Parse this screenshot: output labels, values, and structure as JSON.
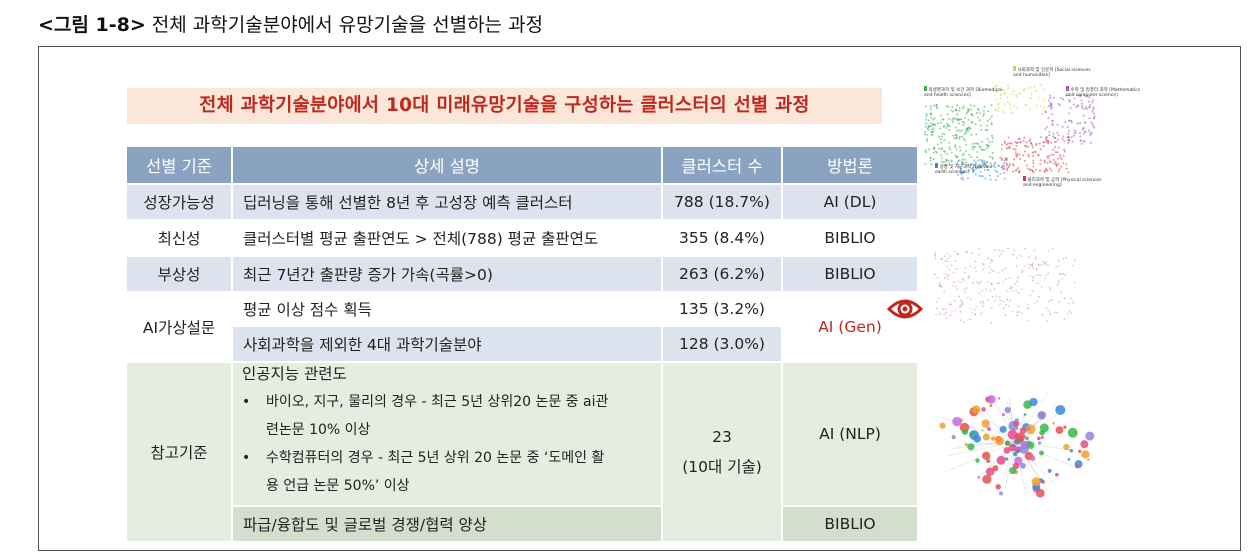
{
  "caption": {
    "prefix": "<그림 1-8>",
    "text": "전체 과학기술분야에서 유망기술을 선별하는 과정"
  },
  "title": "전체 과학기술분야에서 10대 미래유망기술을 구성하는 클러스터의 선별 과정",
  "table": {
    "headers": [
      "선별 기준",
      "상세 설명",
      "클러스터 수",
      "방법론"
    ],
    "rows": [
      {
        "criterion": "성장가능성",
        "desc": "딥러닝을 통해 선별한 8년 후 고성장 예측 클러스터",
        "count": "788 (18.7%)",
        "method": "AI (DL)"
      },
      {
        "criterion": "최신성",
        "desc": "클러스터별 평균 출판연도 > 전체(788) 평균 출판연도",
        "count": "355 (8.4%)",
        "method": "BIBLIO"
      },
      {
        "criterion": "부상성",
        "desc": "최근 7년간 출판량 증가 가속(곡률>0)",
        "count": "263 (6.2%)",
        "method": "BIBLIO"
      },
      {
        "criterion": "AI가상설문",
        "desc": "평균 이상 점수 획득",
        "count": "135 (3.2%)",
        "method": "AI (Gen)"
      },
      {
        "criterion": "",
        "desc": "사회과학을 제외한 4대 과학기술분야",
        "count": "128 (3.0%)",
        "method": ""
      },
      {
        "criterion": "참고기준",
        "desc_title": "인공지능 관련도",
        "bullet1a": "바이오, 지구, 물리의 경우 - 최근 5년 상위20 논문 중 ai관",
        "bullet1b": "련논문 10% 이상",
        "bullet2a": "수학컴퓨터의 경우 - 최근 5년 상위 20 논문 중 ‘도메인 활",
        "bullet2b": "용 언급 논문 50%’ 이상",
        "bullet_mark": "•",
        "count_line1": "23",
        "count_line2": "(10대 기술)",
        "method": "AI (NLP)"
      },
      {
        "criterion": "",
        "desc": "파급/융합도 및 글로벌 경쟁/협력 양상",
        "count": "",
        "method": "BIBLIO"
      }
    ]
  },
  "legend_labels": {
    "social": "사회과학 및 인문학 [Social sciences and humanities]",
    "bio": "의생명과학 및 보건 과학 [Biomedical and health sciences]",
    "math": "수학 및 컴퓨터 과학 [Mathematics and computer science]",
    "life": "생명 및 지구과학 [Life and earth sciences]",
    "phys": "물리과학 및 공학 [Physical sciences and engineering]"
  },
  "colors": {
    "header": "#8aa3c0",
    "row_blue": "#dde3ee",
    "row_green": "#e5ece0",
    "row_green_dark": "#d3dfcc",
    "accent_red": "#c0281f",
    "title_bg": "#fbe7d8"
  },
  "icons": {
    "eye": "eye-icon"
  }
}
